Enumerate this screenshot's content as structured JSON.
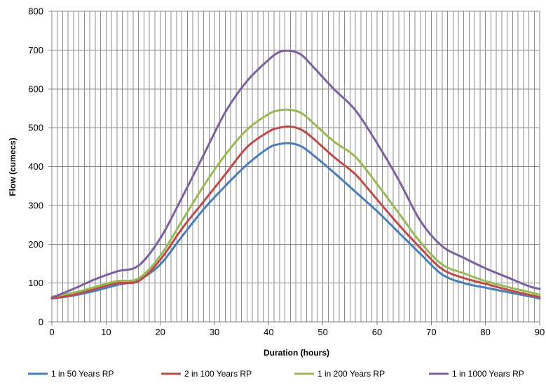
{
  "chart_data": {
    "type": "line",
    "xlabel": "Duration (hours)",
    "ylabel": "Flow (cumecs)",
    "xlim": [
      0,
      90
    ],
    "ylim": [
      0,
      800
    ],
    "x_ticks": [
      0,
      10,
      20,
      30,
      40,
      50,
      60,
      70,
      80,
      90
    ],
    "y_ticks": [
      0,
      100,
      200,
      300,
      400,
      500,
      600,
      700,
      800
    ],
    "grid": "vertical lines every 1 hour; horizontal lines every 100",
    "legend_position": "bottom",
    "x": [
      0,
      4,
      8,
      12,
      16,
      20,
      24,
      28,
      32,
      36,
      40,
      42,
      44,
      46,
      48,
      52,
      56,
      60,
      64,
      68,
      72,
      76,
      80,
      84,
      88,
      90
    ],
    "series": [
      {
        "name": "1 in 50 Years RP",
        "color": "#4a7ebb",
        "values": [
          60,
          68,
          80,
          95,
          108,
          148,
          220,
          290,
          350,
          405,
          448,
          458,
          460,
          452,
          432,
          385,
          335,
          285,
          230,
          175,
          122,
          100,
          88,
          77,
          66,
          60
        ]
      },
      {
        "name": "2 in 100 Years RP",
        "color": "#be4b48",
        "values": [
          60,
          70,
          85,
          100,
          105,
          160,
          240,
          310,
          380,
          450,
          490,
          500,
          503,
          495,
          475,
          425,
          380,
          315,
          250,
          190,
          136,
          113,
          98,
          83,
          70,
          64
        ]
      },
      {
        "name": "1 in 200 Years RP",
        "color": "#98b954",
        "values": [
          65,
          75,
          90,
          105,
          112,
          170,
          260,
          350,
          430,
          495,
          535,
          545,
          546,
          538,
          515,
          465,
          425,
          355,
          280,
          205,
          148,
          125,
          105,
          90,
          77,
          70
        ]
      },
      {
        "name": "1 in 1000 Years RP",
        "color": "#7d60a0",
        "values": [
          62,
          85,
          110,
          130,
          145,
          215,
          320,
          430,
          540,
          620,
          675,
          695,
          698,
          688,
          660,
          600,
          545,
          460,
          365,
          260,
          195,
          165,
          138,
          115,
          92,
          85
        ]
      }
    ]
  }
}
